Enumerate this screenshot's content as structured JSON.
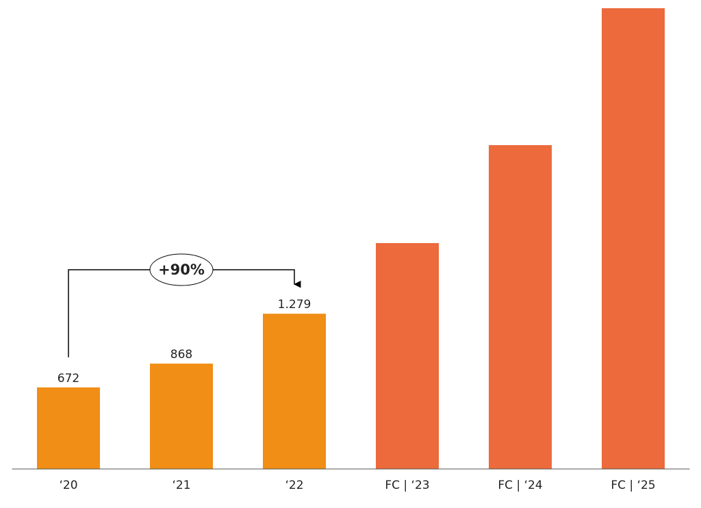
{
  "chart_data": {
    "type": "bar",
    "categories": [
      "‘20",
      "‘21",
      "‘22",
      "FC | ‘23",
      "FC | ‘24",
      "FC | ‘25"
    ],
    "values": [
      672,
      868,
      1279,
      1861,
      2668,
      3796
    ],
    "value_labels": [
      "672",
      "868",
      "1.279",
      null,
      null,
      null
    ],
    "colors": [
      "#f18e15",
      "#f18e15",
      "#f18e15",
      "#ec6a3c",
      "#ec6a3c",
      "#ec6a3c"
    ],
    "ylim": [
      0,
      3796
    ],
    "annotation": "+90%"
  }
}
